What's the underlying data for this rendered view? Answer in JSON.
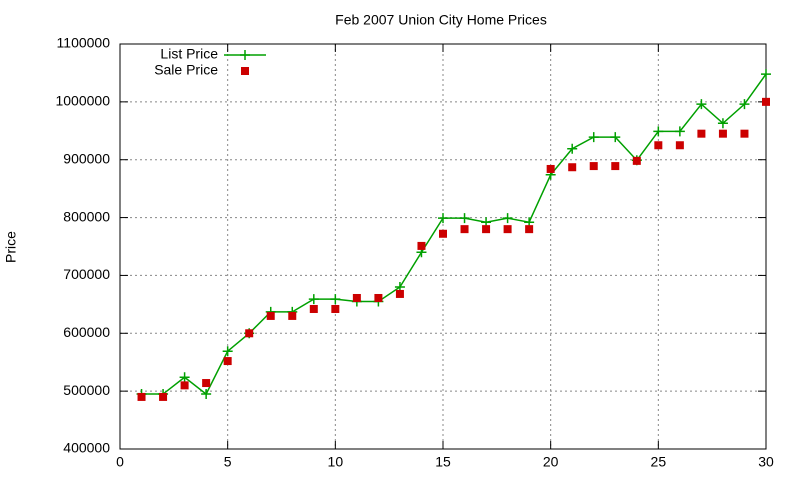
{
  "chart_data": {
    "type": "line",
    "title": "Feb 2007 Union City Home Prices",
    "y_label": "Price",
    "x": [
      1,
      2,
      3,
      4,
      5,
      6,
      7,
      8,
      9,
      10,
      11,
      12,
      13,
      14,
      15,
      16,
      17,
      18,
      19,
      20,
      21,
      22,
      23,
      24,
      25,
      26,
      27,
      28,
      29,
      30
    ],
    "series": [
      {
        "name": "List Price",
        "color": "#00a000",
        "mode": "lines+markers",
        "marker": "plus",
        "values": [
          495000,
          495000,
          524000,
          495000,
          569000,
          600000,
          637000,
          637000,
          659000,
          659000,
          655000,
          655000,
          680000,
          740000,
          799000,
          799000,
          792000,
          799000,
          792000,
          874000,
          919000,
          939000,
          939000,
          899000,
          949000,
          949000,
          996000,
          963000,
          996000,
          1048000
        ]
      },
      {
        "name": "Sale Price",
        "color": "#cc0000",
        "mode": "markers",
        "marker": "square",
        "values": [
          490000,
          490000,
          510000,
          514000,
          552000,
          600000,
          630000,
          630000,
          642000,
          642000,
          661000,
          661000,
          668000,
          751000,
          772000,
          780000,
          780000,
          780000,
          780000,
          884000,
          887000,
          889000,
          889000,
          898000,
          925000,
          925000,
          945000,
          945000,
          945000,
          1000000
        ]
      }
    ],
    "xlim": [
      0,
      30
    ],
    "xticks": [
      0,
      5,
      10,
      15,
      20,
      25,
      30
    ],
    "ylim": [
      400000,
      1100000
    ],
    "yticks": [
      400000,
      500000,
      600000,
      700000,
      800000,
      900000,
      1000000,
      1100000
    ],
    "grid": true,
    "legend": "top-left"
  }
}
